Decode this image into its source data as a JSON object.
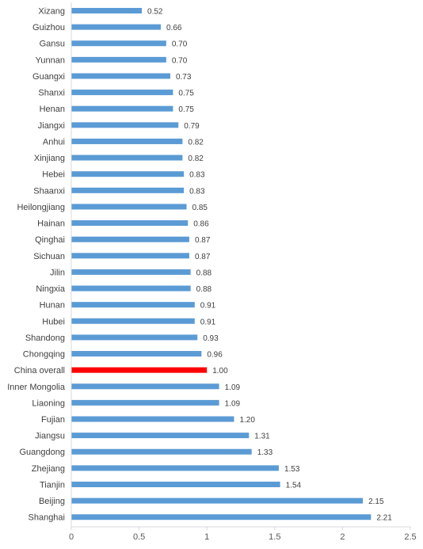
{
  "chart_data": {
    "type": "bar",
    "orientation": "horizontal",
    "categories": [
      "Xizang",
      "Guizhou",
      "Gansu",
      "Yunnan",
      "Guangxi",
      "Shanxi",
      "Henan",
      "Jiangxi",
      "Anhui",
      "Xinjiang",
      "Hebei",
      "Shaanxi",
      "Heilongjiang",
      "Hainan",
      "Qinghai",
      "Sichuan",
      "Jilin",
      "Ningxia",
      "Hunan",
      "Hubei",
      "Shandong",
      "Chongqing",
      "China overall",
      "Inner Mongolia",
      "Liaoning",
      "Fujian",
      "Jiangsu",
      "Guangdong",
      "Zhejiang",
      "Tianjin",
      "Beijing",
      "Shanghai"
    ],
    "values": [
      0.52,
      0.66,
      0.7,
      0.7,
      0.73,
      0.75,
      0.75,
      0.79,
      0.82,
      0.82,
      0.83,
      0.83,
      0.85,
      0.86,
      0.87,
      0.87,
      0.88,
      0.88,
      0.91,
      0.91,
      0.93,
      0.96,
      1.0,
      1.09,
      1.09,
      1.2,
      1.31,
      1.33,
      1.53,
      1.54,
      2.15,
      2.21
    ],
    "value_labels": [
      "0.52",
      "0.66",
      "0.70",
      "0.70",
      "0.73",
      "0.75",
      "0.75",
      "0.79",
      "0.82",
      "0.82",
      "0.83",
      "0.83",
      "0.85",
      "0.86",
      "0.87",
      "0.87",
      "0.88",
      "0.88",
      "0.91",
      "0.91",
      "0.93",
      "0.96",
      "1.00",
      "1.09",
      "1.09",
      "1.20",
      "1.31",
      "1.33",
      "1.53",
      "1.54",
      "2.15",
      "2.21"
    ],
    "highlight_category": "China overall",
    "xlim": [
      0,
      2.5
    ],
    "xticks": [
      0,
      0.5,
      1,
      1.5,
      2,
      2.5
    ],
    "xtick_labels": [
      "0",
      "0.5",
      "1",
      "1.5",
      "2",
      "2.5"
    ],
    "grid": false,
    "colors": {
      "bar": "#5B9BD5",
      "highlight": "#FF0000",
      "axis": "#D9D9D9"
    }
  }
}
